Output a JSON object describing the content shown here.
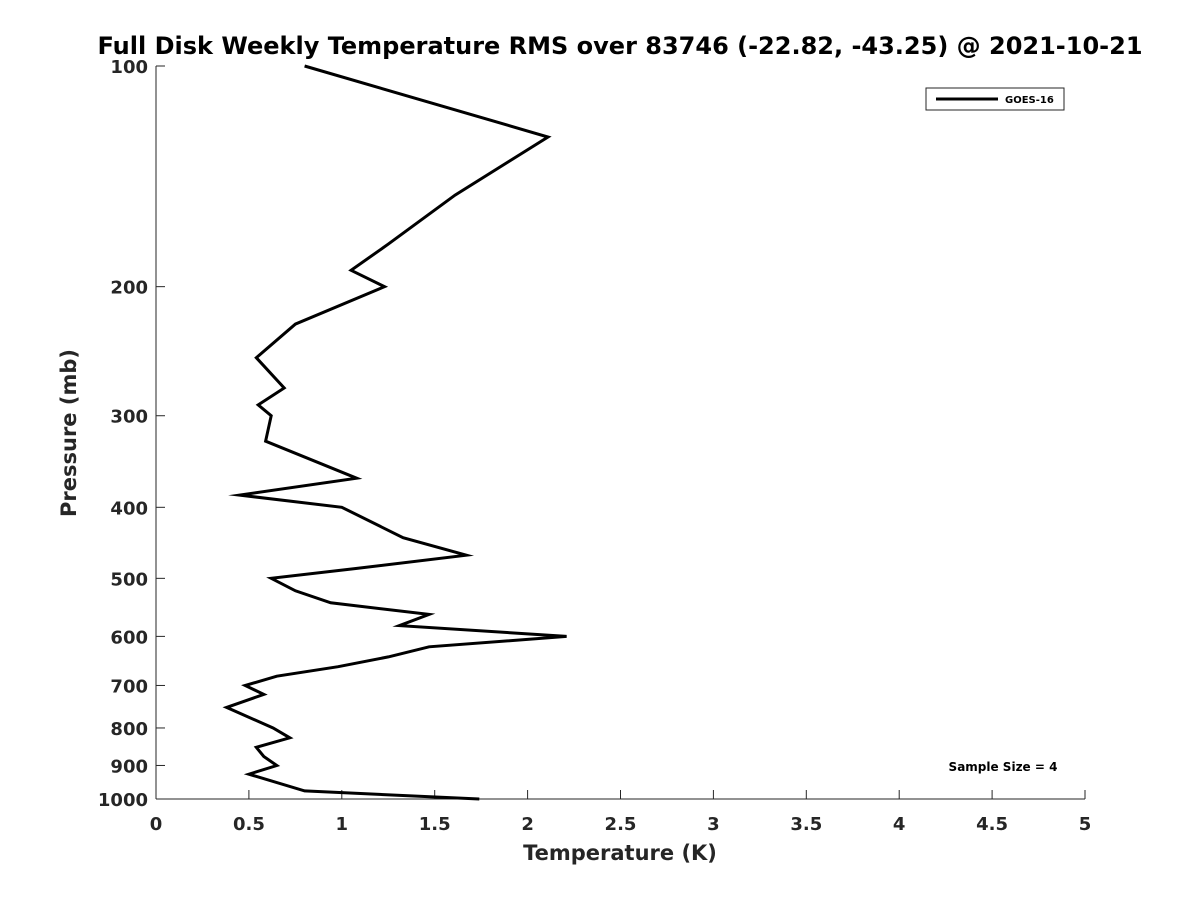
{
  "chart_data": {
    "type": "line",
    "title": "Full Disk Weekly Temperature RMS over 83746 (-22.82, -43.25) @ 2021-10-21",
    "xlabel": "Temperature (K)",
    "ylabel": "Pressure (mb)",
    "xlim": [
      0,
      5
    ],
    "ylim": [
      100,
      1000
    ],
    "y_scale": "log",
    "y_reversed": true,
    "x_ticks": [
      "0",
      "0.5",
      "1",
      "1.5",
      "2",
      "2.5",
      "3",
      "3.5",
      "4",
      "4.5",
      "5"
    ],
    "y_ticks": [
      "100",
      "200",
      "300",
      "400",
      "500",
      "600",
      "700",
      "800",
      "900",
      "1000"
    ],
    "grid": false,
    "legend_position": "top-right",
    "annotation": "Sample Size = 4",
    "series": [
      {
        "name": "GOES-16",
        "color": "#000000",
        "points": [
          {
            "x": 0.8,
            "y": 100
          },
          {
            "x": 2.11,
            "y": 125
          },
          {
            "x": 1.61,
            "y": 150
          },
          {
            "x": 1.25,
            "y": 175
          },
          {
            "x": 1.05,
            "y": 190
          },
          {
            "x": 1.23,
            "y": 200
          },
          {
            "x": 0.75,
            "y": 225
          },
          {
            "x": 0.54,
            "y": 250
          },
          {
            "x": 0.69,
            "y": 275
          },
          {
            "x": 0.55,
            "y": 290
          },
          {
            "x": 0.62,
            "y": 300
          },
          {
            "x": 0.59,
            "y": 325
          },
          {
            "x": 1.08,
            "y": 365
          },
          {
            "x": 0.45,
            "y": 385
          },
          {
            "x": 1.0,
            "y": 400
          },
          {
            "x": 1.33,
            "y": 440
          },
          {
            "x": 1.67,
            "y": 465
          },
          {
            "x": 1.07,
            "y": 485
          },
          {
            "x": 0.62,
            "y": 500
          },
          {
            "x": 0.75,
            "y": 520
          },
          {
            "x": 0.94,
            "y": 540
          },
          {
            "x": 1.47,
            "y": 560
          },
          {
            "x": 1.31,
            "y": 580
          },
          {
            "x": 2.21,
            "y": 600
          },
          {
            "x": 1.47,
            "y": 620
          },
          {
            "x": 1.25,
            "y": 640
          },
          {
            "x": 0.98,
            "y": 660
          },
          {
            "x": 0.65,
            "y": 680
          },
          {
            "x": 0.48,
            "y": 700
          },
          {
            "x": 0.58,
            "y": 720
          },
          {
            "x": 0.38,
            "y": 750
          },
          {
            "x": 0.63,
            "y": 800
          },
          {
            "x": 0.72,
            "y": 825
          },
          {
            "x": 0.54,
            "y": 850
          },
          {
            "x": 0.58,
            "y": 875
          },
          {
            "x": 0.65,
            "y": 900
          },
          {
            "x": 0.5,
            "y": 925
          },
          {
            "x": 0.8,
            "y": 975
          },
          {
            "x": 1.74,
            "y": 1000
          }
        ]
      }
    ]
  }
}
